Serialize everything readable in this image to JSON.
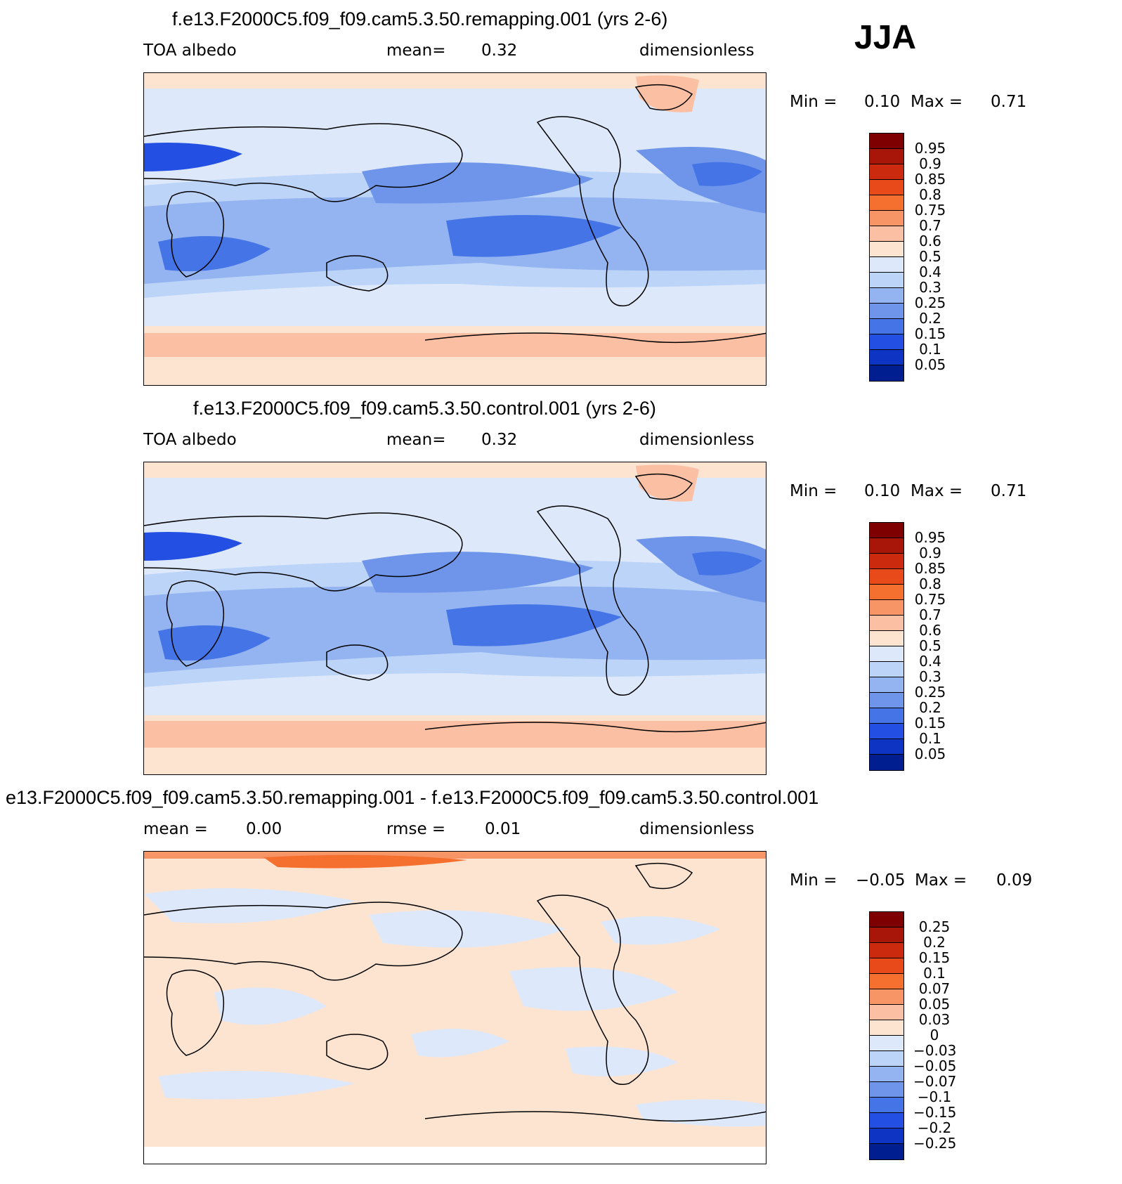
{
  "season": "JJA",
  "panels": [
    {
      "title": "f.e13.F2000C5.f09_f09.cam5.3.50.remapping.001 (yrs 2-6)",
      "left_label": "TOA albedo",
      "center_label": "mean=",
      "center_value": "0.32",
      "right_label": "dimensionless",
      "min_label": "Min =",
      "min_value": "0.10",
      "max_label": "Max =",
      "max_value": "0.71",
      "colorbar_labels": [
        "0.95",
        "0.9",
        "0.85",
        "0.8",
        "0.75",
        "0.7",
        "0.6",
        "0.5",
        "0.4",
        "0.3",
        "0.25",
        "0.2",
        "0.15",
        "0.1",
        "0.05"
      ],
      "colorbar_colors": [
        "#7f0000",
        "#a8160a",
        "#cc2a0e",
        "#e84a1a",
        "#f5702f",
        "#f89567",
        "#fbbfa3",
        "#fde4d1",
        "#dde9fb",
        "#bcd4f8",
        "#93b4f1",
        "#6e95ea",
        "#4574e6",
        "#234fe2",
        "#0e34c4",
        "#001e8f"
      ]
    },
    {
      "title": "f.e13.F2000C5.f09_f09.cam5.3.50.control.001 (yrs 2-6)",
      "left_label": "TOA albedo",
      "center_label": "mean=",
      "center_value": "0.32",
      "right_label": "dimensionless",
      "min_label": "Min =",
      "min_value": "0.10",
      "max_label": "Max =",
      "max_value": "0.71",
      "colorbar_labels": [
        "0.95",
        "0.9",
        "0.85",
        "0.8",
        "0.75",
        "0.7",
        "0.6",
        "0.5",
        "0.4",
        "0.3",
        "0.25",
        "0.2",
        "0.15",
        "0.1",
        "0.05"
      ],
      "colorbar_colors": [
        "#7f0000",
        "#a8160a",
        "#cc2a0e",
        "#e84a1a",
        "#f5702f",
        "#f89567",
        "#fbbfa3",
        "#fde4d1",
        "#dde9fb",
        "#bcd4f8",
        "#93b4f1",
        "#6e95ea",
        "#4574e6",
        "#234fe2",
        "#0e34c4",
        "#001e8f"
      ]
    },
    {
      "title": "e13.F2000C5.f09_f09.cam5.3.50.remapping.001 - f.e13.F2000C5.f09_f09.cam5.3.50.control.001",
      "left_label": "mean =",
      "left_value": "0.00",
      "center_label": "rmse =",
      "center_value": "0.01",
      "right_label": "dimensionless",
      "min_label": "Min =",
      "min_value": "−0.05",
      "max_label": "Max =",
      "max_value": "0.09",
      "colorbar_labels": [
        "0.25",
        "0.2",
        "0.15",
        "0.1",
        "0.07",
        "0.05",
        "0.03",
        "0",
        "−0.03",
        "−0.05",
        "−0.07",
        "−0.1",
        "−0.15",
        "−0.2",
        "−0.25"
      ],
      "colorbar_colors": [
        "#7f0000",
        "#a8160a",
        "#cc2a0e",
        "#e84a1a",
        "#f5702f",
        "#f89567",
        "#fbbfa3",
        "#fde4d1",
        "#dde9fb",
        "#bcd4f8",
        "#93b4f1",
        "#6e95ea",
        "#4574e6",
        "#234fe2",
        "#0e34c4",
        "#001e8f"
      ]
    }
  ]
}
